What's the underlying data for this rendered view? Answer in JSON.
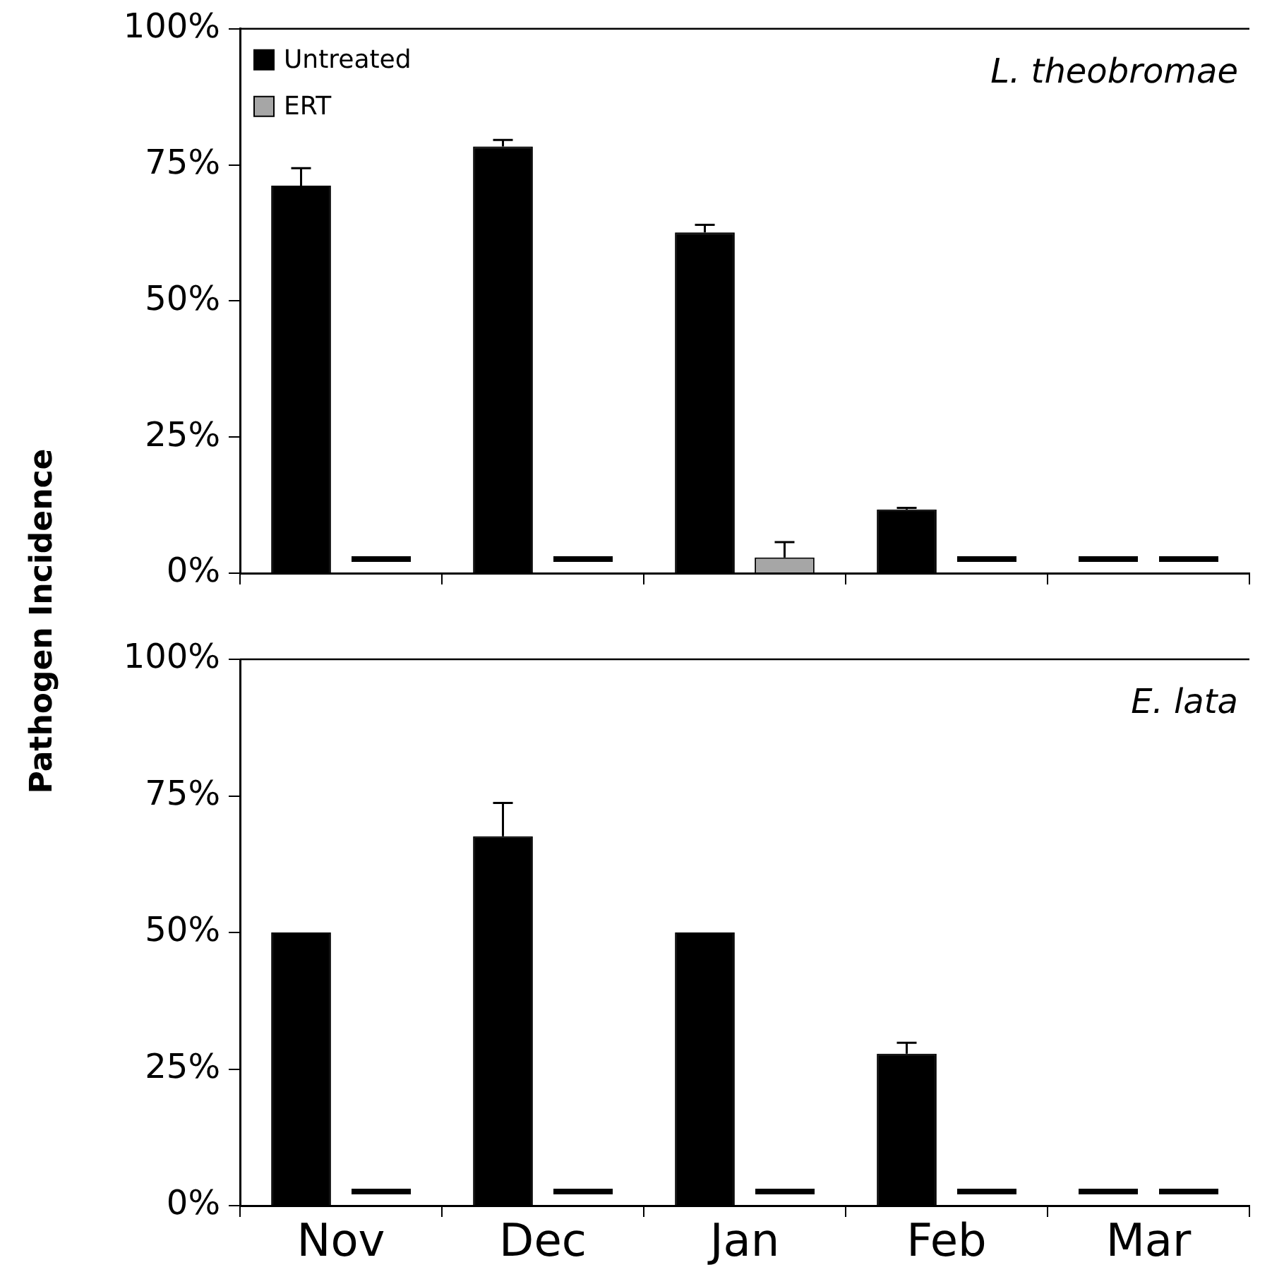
{
  "chart_data": [
    {
      "type": "bar",
      "ylabel": "Pathogen Incidence",
      "categories": [
        null,
        null,
        null,
        null,
        null
      ],
      "series": [
        {
          "name": "Untreated",
          "color": "#000000",
          "values": [
            71.2,
            78.4,
            62.6,
            11.7,
            0
          ],
          "errors": [
            [
              71.2,
              74.4
            ],
            [
              78.4,
              79.6
            ],
            [
              62.6,
              64.0
            ],
            [
              11.7,
              12.0
            ],
            null
          ]
        },
        {
          "name": "ERT",
          "color": "#a6a6a6",
          "values": [
            0,
            0,
            2.9,
            0,
            0
          ],
          "errors": [
            null,
            null,
            [
              2.9,
              5.7
            ],
            null,
            null
          ]
        }
      ],
      "ylim": [
        0,
        100
      ],
      "yticks": [
        {
          "value": 0,
          "label": "0%"
        },
        {
          "value": 25,
          "label": "25%"
        },
        {
          "value": 50,
          "label": "50%"
        },
        {
          "value": 75,
          "label": "75%"
        },
        {
          "value": 100,
          "label": "100%"
        }
      ],
      "annotations": [
        "L. theobromae"
      ],
      "legend": "top left",
      "tick_labels": "y"
    },
    {
      "type": "bar",
      "categories": [
        "Nov",
        "Dec",
        "Jan",
        "Feb",
        "Mar"
      ],
      "series": [
        {
          "color": "#000000",
          "values": [
            50,
            67.6,
            50,
            27.8,
            0
          ],
          "errors": [
            null,
            [
              67.6,
              73.7
            ],
            null,
            [
              27.8,
              29.8
            ],
            null
          ]
        },
        {
          "color": "#a6a6a6",
          "values": [
            0,
            0,
            0,
            0,
            0
          ]
        }
      ],
      "ylim": [
        0,
        100
      ],
      "yticks": [
        {
          "value": 0,
          "label": "0%"
        },
        {
          "value": 25,
          "label": "25%"
        },
        {
          "value": 50,
          "label": "50%"
        },
        {
          "value": 75,
          "label": "75%"
        },
        {
          "value": 100,
          "label": "100%"
        }
      ],
      "annotations": [
        "E. lata"
      ],
      "legend": false
    }
  ]
}
